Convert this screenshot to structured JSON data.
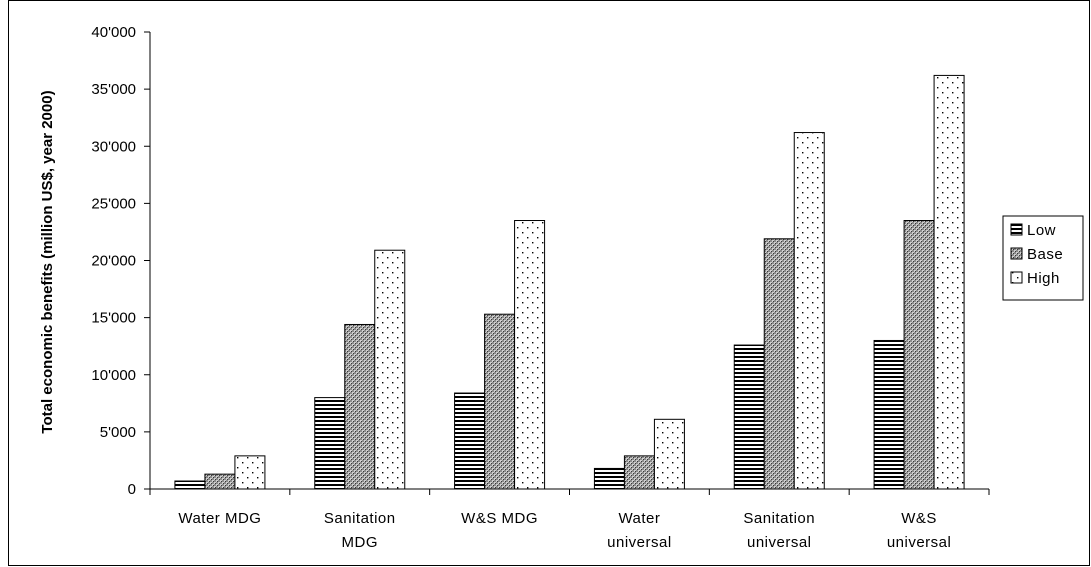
{
  "chart_data": {
    "type": "bar",
    "title": "",
    "xlabel": "",
    "ylabel": "Total economic benefits (million US$, year 2000)",
    "ylim": [
      0,
      40000
    ],
    "yticks": [
      0,
      5000,
      10000,
      15000,
      20000,
      25000,
      30000,
      35000,
      40000
    ],
    "ytick_labels": [
      "0",
      "5'000",
      "10'000",
      "15'000",
      "20'000",
      "25'000",
      "30'000",
      "35'000",
      "40'000"
    ],
    "categories": [
      [
        "Water MDG"
      ],
      [
        "Sanitation",
        "MDG"
      ],
      [
        "W&S MDG"
      ],
      [
        "Water",
        "universal"
      ],
      [
        "Sanitation",
        "universal"
      ],
      [
        "W&S",
        "universal"
      ]
    ],
    "series": [
      {
        "name": "Low",
        "pattern": "horizontal-stripes",
        "values": [
          700,
          8000,
          8400,
          1800,
          12600,
          13000
        ]
      },
      {
        "name": "Base",
        "pattern": "crosshatch",
        "values": [
          1300,
          14400,
          15300,
          2900,
          21900,
          23500
        ]
      },
      {
        "name": "High",
        "pattern": "dots",
        "values": [
          2900,
          20900,
          23500,
          6100,
          31200,
          36200
        ]
      }
    ],
    "legend_position": "right",
    "grid": false
  }
}
